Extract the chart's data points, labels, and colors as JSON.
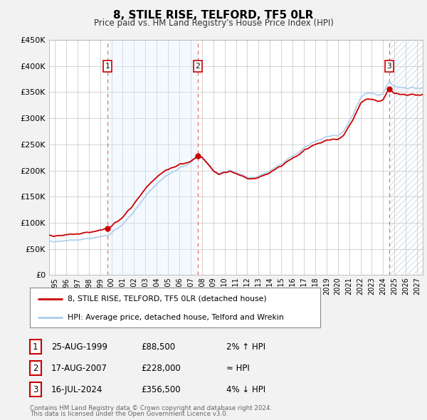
{
  "title": "8, STILE RISE, TELFORD, TF5 0LR",
  "subtitle": "Price paid vs. HM Land Registry's House Price Index (HPI)",
  "bg_color": "#f2f2f2",
  "plot_bg_color": "#ffffff",
  "grid_color": "#cccccc",
  "hpi_color": "#aaccee",
  "price_color": "#cc0000",
  "sale_dot_color": "#cc0000",
  "vline_color": "#ee6666",
  "shade_color": "#ddeeff",
  "hatch_color": "#ccddee",
  "ylim": [
    0,
    450000
  ],
  "yticks": [
    0,
    50000,
    100000,
    150000,
    200000,
    250000,
    300000,
    350000,
    400000,
    450000
  ],
  "xlim_start": 1994.5,
  "xlim_end": 2027.5,
  "xticks": [
    1995,
    1996,
    1997,
    1998,
    1999,
    2000,
    2001,
    2002,
    2003,
    2004,
    2005,
    2006,
    2007,
    2008,
    2009,
    2010,
    2011,
    2012,
    2013,
    2014,
    2015,
    2016,
    2017,
    2018,
    2019,
    2020,
    2021,
    2022,
    2023,
    2024,
    2025,
    2026,
    2027
  ],
  "sale1_date": 1999.65,
  "sale1_price": 88500,
  "sale2_date": 2007.62,
  "sale2_price": 228000,
  "sale3_date": 2024.54,
  "sale3_price": 356500,
  "legend_label1": "8, STILE RISE, TELFORD, TF5 0LR (detached house)",
  "legend_label2": "HPI: Average price, detached house, Telford and Wrekin",
  "table_rows": [
    {
      "num": "1",
      "date": "25-AUG-1999",
      "price": "£88,500",
      "relation": "2% ↑ HPI"
    },
    {
      "num": "2",
      "date": "17-AUG-2007",
      "price": "£228,000",
      "relation": "≈ HPI"
    },
    {
      "num": "3",
      "date": "16-JUL-2024",
      "price": "£356,500",
      "relation": "4% ↓ HPI"
    }
  ],
  "footnote1": "Contains HM Land Registry data © Crown copyright and database right 2024.",
  "footnote2": "This data is licensed under the Open Government Licence v3.0."
}
